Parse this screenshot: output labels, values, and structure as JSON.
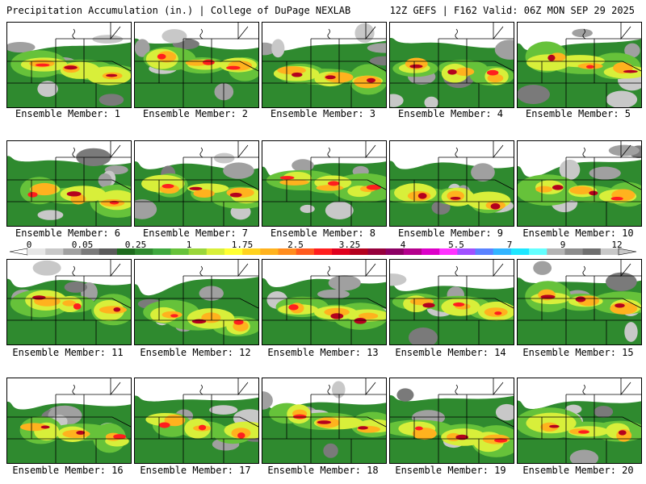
{
  "header": {
    "title_left": "Precipitation Accumulation (in.) | College of DuPage NEXLAB",
    "title_right": "12Z GEFS | F162 Valid: 06Z MON SEP 29 2025"
  },
  "members": [
    "Ensemble Member: 1",
    "Ensemble Member: 2",
    "Ensemble Member: 3",
    "Ensemble Member: 4",
    "Ensemble Member: 5",
    "Ensemble Member: 6",
    "Ensemble Member: 7",
    "Ensemble Member: 8",
    "Ensemble Member: 9",
    "Ensemble Member: 10",
    "Ensemble Member: 11",
    "Ensemble Member: 12",
    "Ensemble Member: 13",
    "Ensemble Member: 14",
    "Ensemble Member: 15",
    "Ensemble Member: 16",
    "Ensemble Member: 17",
    "Ensemble Member: 18",
    "Ensemble Member: 19",
    "Ensemble Member: 20"
  ],
  "colorbar": {
    "labels": [
      "0",
      "0.05",
      "0.25",
      "1",
      "1.75",
      "2.5",
      "3.25",
      "4",
      "5.5",
      "7",
      "9",
      "12"
    ],
    "colors": [
      "#e6e6e6",
      "#c8c8c8",
      "#a0a0a0",
      "#7a7a7a",
      "#5a5a5a",
      "#1e6b1e",
      "#2f8a2f",
      "#3fa83f",
      "#66c23a",
      "#9ad63a",
      "#d8ef3a",
      "#ffff33",
      "#ffd21e",
      "#ffb21e",
      "#ff8c1e",
      "#ff5a1e",
      "#ff1e1e",
      "#e0001e",
      "#b4001e",
      "#96003c",
      "#8c0064",
      "#b4008c",
      "#dc00c8",
      "#ff32ff",
      "#a050ff",
      "#5a82ff",
      "#32b4ff",
      "#1ee6ff",
      "#64ffff",
      "#b4b4b4",
      "#8c8c8c",
      "#6e6e6e",
      "#c8c8c8"
    ]
  }
}
